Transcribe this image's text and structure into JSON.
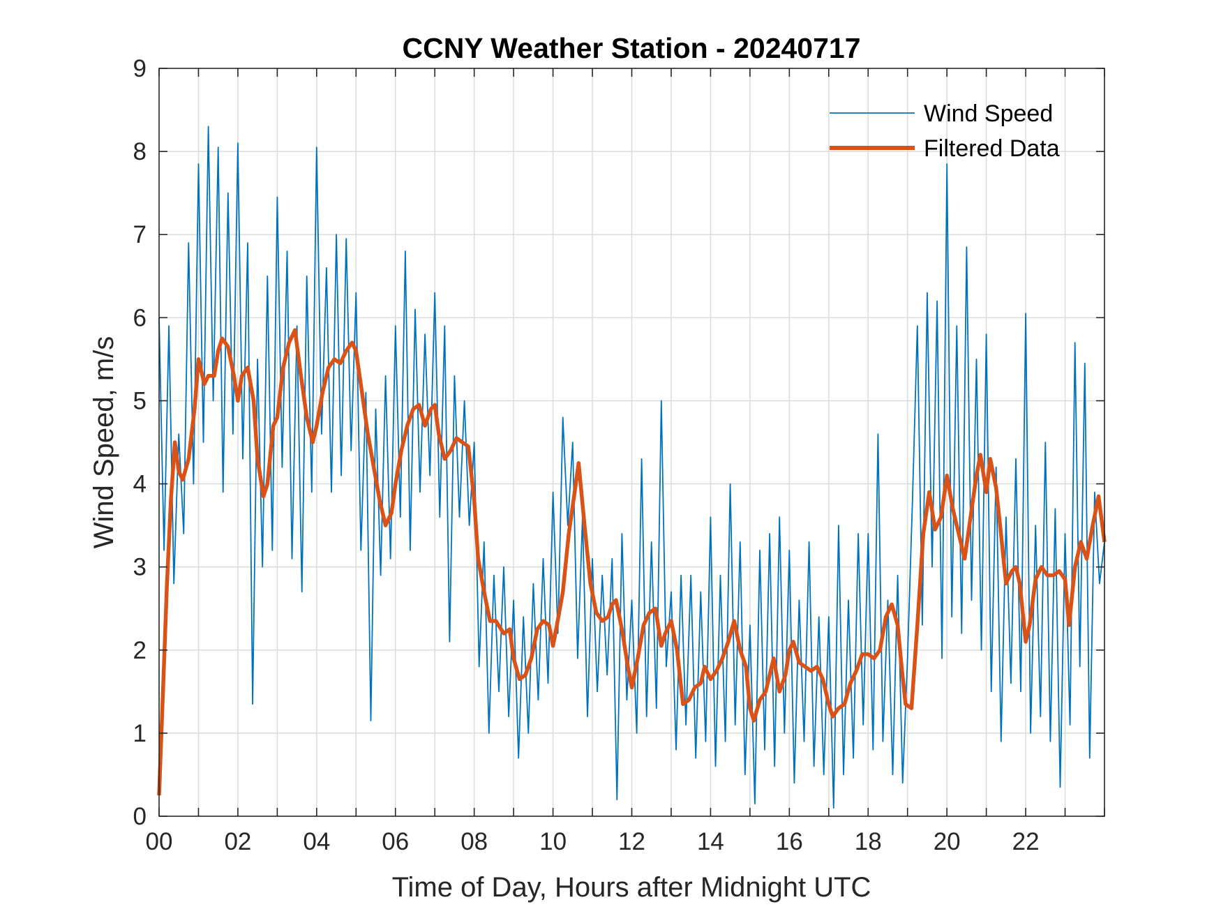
{
  "chart_data": {
    "type": "line",
    "title": "CCNY Weather Station - 20240717",
    "xlabel": "Time of Day, Hours after Midnight UTC",
    "ylabel": "Wind Speed, m/s",
    "xlim": [
      0,
      24
    ],
    "ylim": [
      0,
      9
    ],
    "xticks": [
      0,
      2,
      4,
      6,
      8,
      10,
      12,
      14,
      16,
      18,
      20,
      22
    ],
    "xtick_labels": [
      "00",
      "02",
      "04",
      "06",
      "08",
      "10",
      "12",
      "14",
      "16",
      "18",
      "20",
      "22"
    ],
    "x_minor_ticks_every_hour": true,
    "yticks": [
      0,
      1,
      2,
      3,
      4,
      5,
      6,
      7,
      8,
      9
    ],
    "ytick_labels": [
      "0",
      "1",
      "2",
      "3",
      "4",
      "5",
      "6",
      "7",
      "8",
      "9"
    ],
    "grid": true,
    "legend_position": "top-right",
    "series": [
      {
        "name": "Wind Speed",
        "color": "#0072BD",
        "x": [
          0,
          0.125,
          0.25,
          0.375,
          0.5,
          0.625,
          0.75,
          0.875,
          1,
          1.125,
          1.25,
          1.375,
          1.5,
          1.625,
          1.75,
          1.875,
          2,
          2.125,
          2.25,
          2.375,
          2.5,
          2.625,
          2.75,
          2.875,
          3,
          3.125,
          3.25,
          3.375,
          3.5,
          3.625,
          3.75,
          3.875,
          4,
          4.125,
          4.25,
          4.375,
          4.5,
          4.625,
          4.75,
          4.875,
          5,
          5.125,
          5.25,
          5.375,
          5.5,
          5.625,
          5.75,
          5.875,
          6,
          6.125,
          6.25,
          6.375,
          6.5,
          6.625,
          6.75,
          6.875,
          7,
          7.125,
          7.25,
          7.375,
          7.5,
          7.625,
          7.75,
          7.875,
          8,
          8.125,
          8.25,
          8.375,
          8.5,
          8.625,
          8.75,
          8.875,
          9,
          9.125,
          9.25,
          9.375,
          9.5,
          9.625,
          9.75,
          9.875,
          10,
          10.125,
          10.25,
          10.375,
          10.5,
          10.625,
          10.75,
          10.875,
          11,
          11.125,
          11.25,
          11.375,
          11.5,
          11.625,
          11.75,
          11.875,
          12,
          12.125,
          12.25,
          12.375,
          12.5,
          12.625,
          12.75,
          12.875,
          13,
          13.125,
          13.25,
          13.375,
          13.5,
          13.625,
          13.75,
          13.875,
          14,
          14.125,
          14.25,
          14.375,
          14.5,
          14.625,
          14.75,
          14.875,
          15,
          15.125,
          15.25,
          15.375,
          15.5,
          15.625,
          15.75,
          15.875,
          16,
          16.125,
          16.25,
          16.375,
          16.5,
          16.625,
          16.75,
          16.875,
          17,
          17.125,
          17.25,
          17.375,
          17.5,
          17.625,
          17.75,
          17.875,
          18,
          18.125,
          18.25,
          18.375,
          18.5,
          18.625,
          18.75,
          18.875,
          19,
          19.125,
          19.25,
          19.375,
          19.5,
          19.625,
          19.75,
          19.875,
          20,
          20.125,
          20.25,
          20.375,
          20.5,
          20.625,
          20.75,
          20.875,
          21,
          21.125,
          21.25,
          21.375,
          21.5,
          21.625,
          21.75,
          21.875,
          22,
          22.125,
          22.25,
          22.375,
          22.5,
          22.625,
          22.75,
          22.875,
          23,
          23.125,
          23.25,
          23.375,
          23.5,
          23.625,
          23.75,
          23.875,
          24
        ],
        "y": [
          6.0,
          3.2,
          5.9,
          2.8,
          4.6,
          3.4,
          6.9,
          4.0,
          7.85,
          4.5,
          8.3,
          5.0,
          8.05,
          3.9,
          7.5,
          4.6,
          8.1,
          4.3,
          6.9,
          1.35,
          5.5,
          3.0,
          6.5,
          3.2,
          7.45,
          4.2,
          6.8,
          3.1,
          5.9,
          2.7,
          6.5,
          3.9,
          8.05,
          4.6,
          6.6,
          3.9,
          7.0,
          4.1,
          6.95,
          4.4,
          6.3,
          3.2,
          5.1,
          1.15,
          4.9,
          2.9,
          5.3,
          3.1,
          5.9,
          3.6,
          6.8,
          3.2,
          6.1,
          3.9,
          5.8,
          4.1,
          6.3,
          3.6,
          5.9,
          2.1,
          5.3,
          3.6,
          5.0,
          3.5,
          4.5,
          1.8,
          3.3,
          1.0,
          2.9,
          1.5,
          3.0,
          1.2,
          2.6,
          0.7,
          2.4,
          1.0,
          2.8,
          1.4,
          3.1,
          1.6,
          3.9,
          2.2,
          4.8,
          3.5,
          4.5,
          1.9,
          3.6,
          1.2,
          3.1,
          1.5,
          2.9,
          1.7,
          3.1,
          0.2,
          3.4,
          1.4,
          2.6,
          1.0,
          4.3,
          1.2,
          3.3,
          1.3,
          5.0,
          1.8,
          2.7,
          0.8,
          2.9,
          1.1,
          2.9,
          0.7,
          2.7,
          0.9,
          3.6,
          0.6,
          2.9,
          0.9,
          4.0,
          1.1,
          3.3,
          0.5,
          2.3,
          0.15,
          3.2,
          0.8,
          3.4,
          0.6,
          3.6,
          1.0,
          3.2,
          0.4,
          2.6,
          0.9,
          3.3,
          0.6,
          2.4,
          0.5,
          2.4,
          0.1,
          3.5,
          0.5,
          2.6,
          0.7,
          3.4,
          1.1,
          3.4,
          0.8,
          4.6,
          0.9,
          2.6,
          0.5,
          2.9,
          0.4,
          1.9,
          3.8,
          5.9,
          2.3,
          6.3,
          3.0,
          6.2,
          1.9,
          7.85,
          2.4,
          5.9,
          2.2,
          6.85,
          2.6,
          5.5,
          2.0,
          5.8,
          1.5,
          4.2,
          0.9,
          3.6,
          1.6,
          4.3,
          1.5,
          6.05,
          1.0,
          3.5,
          1.2,
          4.5,
          0.9,
          3.7,
          0.35,
          3.4,
          1.1,
          5.7,
          1.8,
          5.45,
          0.7,
          3.9,
          2.8,
          3.3
        ]
      },
      {
        "name": "Filtered Data",
        "color": "#D95319",
        "x": [
          0,
          0.1,
          0.2,
          0.3,
          0.4,
          0.5,
          0.6,
          0.75,
          0.9,
          1.0,
          1.15,
          1.25,
          1.4,
          1.5,
          1.6,
          1.75,
          1.9,
          2.0,
          2.1,
          2.25,
          2.4,
          2.5,
          2.65,
          2.75,
          2.9,
          3.0,
          3.15,
          3.3,
          3.45,
          3.6,
          3.75,
          3.9,
          4.0,
          4.15,
          4.3,
          4.45,
          4.6,
          4.75,
          4.9,
          5.0,
          5.15,
          5.3,
          5.45,
          5.6,
          5.75,
          5.9,
          6.0,
          6.15,
          6.3,
          6.45,
          6.6,
          6.75,
          6.9,
          7.0,
          7.1,
          7.25,
          7.4,
          7.55,
          7.7,
          7.85,
          8.0,
          8.1,
          8.25,
          8.4,
          8.55,
          8.75,
          8.9,
          9.0,
          9.15,
          9.3,
          9.45,
          9.6,
          9.75,
          9.9,
          10.0,
          10.1,
          10.25,
          10.4,
          10.55,
          10.65,
          10.8,
          10.95,
          11.1,
          11.25,
          11.4,
          11.5,
          11.6,
          11.75,
          11.9,
          12.0,
          12.15,
          12.3,
          12.45,
          12.6,
          12.75,
          12.85,
          13.0,
          13.15,
          13.3,
          13.45,
          13.6,
          13.75,
          13.85,
          14.0,
          14.15,
          14.3,
          14.45,
          14.6,
          14.75,
          14.9,
          15.0,
          15.1,
          15.25,
          15.4,
          15.5,
          15.6,
          15.75,
          15.9,
          16.0,
          16.1,
          16.25,
          16.4,
          16.55,
          16.7,
          16.85,
          17.0,
          17.1,
          17.25,
          17.4,
          17.55,
          17.7,
          17.85,
          18.0,
          18.15,
          18.3,
          18.45,
          18.6,
          18.75,
          18.85,
          18.95,
          19.1,
          19.25,
          19.4,
          19.55,
          19.7,
          19.85,
          20.0,
          20.15,
          20.3,
          20.45,
          20.6,
          20.75,
          20.85,
          21.0,
          21.1,
          21.25,
          21.35,
          21.5,
          21.65,
          21.75,
          21.85,
          22.0,
          22.1,
          22.25,
          22.4,
          22.55,
          22.7,
          22.85,
          23.0,
          23.1,
          23.25,
          23.4,
          23.55,
          23.7,
          23.85,
          24.0
        ],
        "y": [
          0.25,
          1.5,
          2.8,
          3.8,
          4.5,
          4.15,
          4.05,
          4.3,
          4.9,
          5.5,
          5.2,
          5.3,
          5.3,
          5.6,
          5.75,
          5.65,
          5.3,
          5.0,
          5.3,
          5.4,
          5.0,
          4.3,
          3.85,
          4.0,
          4.7,
          4.8,
          5.4,
          5.7,
          5.85,
          5.3,
          4.8,
          4.5,
          4.7,
          5.1,
          5.4,
          5.5,
          5.45,
          5.6,
          5.7,
          5.6,
          5.1,
          4.6,
          4.2,
          3.8,
          3.5,
          3.65,
          4.0,
          4.4,
          4.7,
          4.9,
          4.95,
          4.7,
          4.9,
          4.95,
          4.6,
          4.3,
          4.4,
          4.55,
          4.5,
          4.45,
          3.8,
          3.1,
          2.7,
          2.35,
          2.35,
          2.2,
          2.25,
          1.9,
          1.65,
          1.7,
          1.9,
          2.25,
          2.35,
          2.3,
          2.05,
          2.3,
          2.7,
          3.4,
          3.9,
          4.25,
          3.5,
          2.8,
          2.45,
          2.35,
          2.4,
          2.55,
          2.6,
          2.25,
          1.8,
          1.55,
          1.9,
          2.3,
          2.45,
          2.5,
          2.05,
          2.2,
          2.35,
          2.0,
          1.35,
          1.4,
          1.55,
          1.6,
          1.8,
          1.65,
          1.75,
          1.9,
          2.1,
          2.35,
          2.0,
          1.8,
          1.3,
          1.15,
          1.4,
          1.5,
          1.7,
          1.9,
          1.5,
          1.7,
          2.0,
          2.1,
          1.85,
          1.8,
          1.75,
          1.8,
          1.65,
          1.35,
          1.2,
          1.3,
          1.35,
          1.6,
          1.75,
          1.95,
          1.95,
          1.9,
          2.0,
          2.4,
          2.55,
          2.3,
          1.8,
          1.35,
          1.3,
          2.3,
          3.4,
          3.9,
          3.45,
          3.6,
          4.1,
          3.7,
          3.4,
          3.1,
          3.6,
          4.1,
          4.35,
          3.9,
          4.3,
          3.95,
          3.5,
          2.8,
          2.95,
          3.0,
          2.8,
          2.1,
          2.3,
          2.85,
          3.0,
          2.9,
          2.9,
          2.95,
          2.85,
          2.3,
          3.0,
          3.3,
          3.1,
          3.5,
          3.85,
          3.3
        ]
      }
    ]
  }
}
